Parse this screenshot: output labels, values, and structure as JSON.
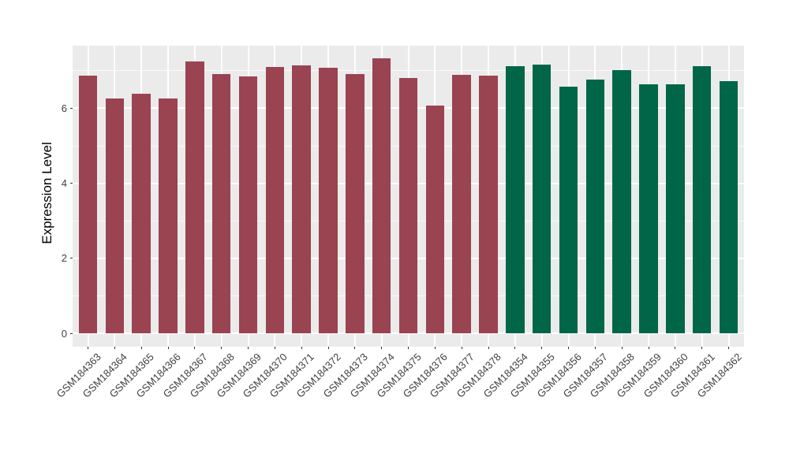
{
  "chart_data": {
    "type": "bar",
    "title": "",
    "xlabel": "",
    "ylabel": "Expression Level",
    "ylim": [
      0,
      7.67
    ],
    "yticks": [
      0,
      2,
      4,
      6
    ],
    "yticks_minor": [
      1,
      3,
      5,
      7
    ],
    "grid": true,
    "legend_position": "none",
    "panel_background": "#EBEBEB",
    "grid_color": "#FFFFFF",
    "group_colors": {
      "left_group": "#9A4351",
      "right_group": "#016647"
    },
    "categories": [
      "GSM184363",
      "GSM184364",
      "GSM184365",
      "GSM184366",
      "GSM184367",
      "GSM184368",
      "GSM184369",
      "GSM184370",
      "GSM184371",
      "GSM184372",
      "GSM184373",
      "GSM184374",
      "GSM184375",
      "GSM184376",
      "GSM184377",
      "GSM184378",
      "GSM184354",
      "GSM184355",
      "GSM184356",
      "GSM184357",
      "GSM184358",
      "GSM184359",
      "GSM184360",
      "GSM184361",
      "GSM184362"
    ],
    "values": [
      6.86,
      6.27,
      6.39,
      6.27,
      7.25,
      6.91,
      6.85,
      7.1,
      7.15,
      7.08,
      6.91,
      7.33,
      6.81,
      6.07,
      6.9,
      6.87,
      7.13,
      7.16,
      6.58,
      6.77,
      7.01,
      6.63,
      6.63,
      7.12,
      6.73
    ],
    "bar_colors": [
      "#9A4351",
      "#9A4351",
      "#9A4351",
      "#9A4351",
      "#9A4351",
      "#9A4351",
      "#9A4351",
      "#9A4351",
      "#9A4351",
      "#9A4351",
      "#9A4351",
      "#9A4351",
      "#9A4351",
      "#9A4351",
      "#9A4351",
      "#9A4351",
      "#016647",
      "#016647",
      "#016647",
      "#016647",
      "#016647",
      "#016647",
      "#016647",
      "#016647",
      "#016647"
    ]
  }
}
